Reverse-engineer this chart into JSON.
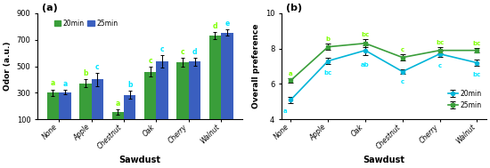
{
  "bar_categories": [
    "None",
    "Apple",
    "Chestnut",
    "Oak",
    "Cherry",
    "Walnut"
  ],
  "bar_20min": [
    300,
    370,
    155,
    460,
    530,
    730
  ],
  "bar_25min": [
    305,
    400,
    285,
    535,
    535,
    755
  ],
  "bar_20min_err": [
    25,
    30,
    18,
    38,
    32,
    28
  ],
  "bar_25min_err": [
    18,
    48,
    28,
    48,
    28,
    22
  ],
  "bar_20min_labels": [
    "a",
    "b",
    "a",
    "c",
    "c",
    "d"
  ],
  "bar_25min_labels": [
    "a",
    "c",
    "b",
    "c",
    "d",
    "e"
  ],
  "bar_color_20": "#3a9e3a",
  "bar_color_25": "#3a5fbf",
  "bar_label_color_20": "#7fff00",
  "bar_label_color_25": "#00e5ff",
  "bar_ylabel": "Odor (a.u.)",
  "bar_xlabel": "Sawdust",
  "bar_title": "(a)",
  "bar_ylim": [
    100,
    900
  ],
  "bar_yticks": [
    100,
    300,
    500,
    700,
    900
  ],
  "line_categories": [
    "None",
    "Apple",
    "Oak",
    "Chestnut",
    "Cherry",
    "Walnut"
  ],
  "line_20min": [
    5.1,
    7.3,
    7.9,
    6.7,
    7.7,
    7.2
  ],
  "line_25min": [
    6.2,
    8.1,
    8.3,
    7.5,
    7.9,
    7.9
  ],
  "line_20min_err": [
    0.18,
    0.18,
    0.28,
    0.13,
    0.18,
    0.18
  ],
  "line_25min_err": [
    0.13,
    0.18,
    0.22,
    0.18,
    0.18,
    0.13
  ],
  "line_20min_labels": [
    "a",
    "bc",
    "ab",
    "c",
    "c",
    "bc"
  ],
  "line_25min_labels": [
    "a",
    "b",
    "bc",
    "c",
    "bc",
    "bc"
  ],
  "line_color_20": "#00b4d8",
  "line_color_25": "#3a9e3a",
  "line_label_color_20": "#00e5ff",
  "line_label_color_25": "#7fff00",
  "line_ylabel": "Overall preference",
  "line_xlabel": "Sawdust",
  "line_title": "(b)",
  "line_ylim": [
    4,
    10
  ],
  "line_yticks": [
    4,
    6,
    8,
    10
  ]
}
